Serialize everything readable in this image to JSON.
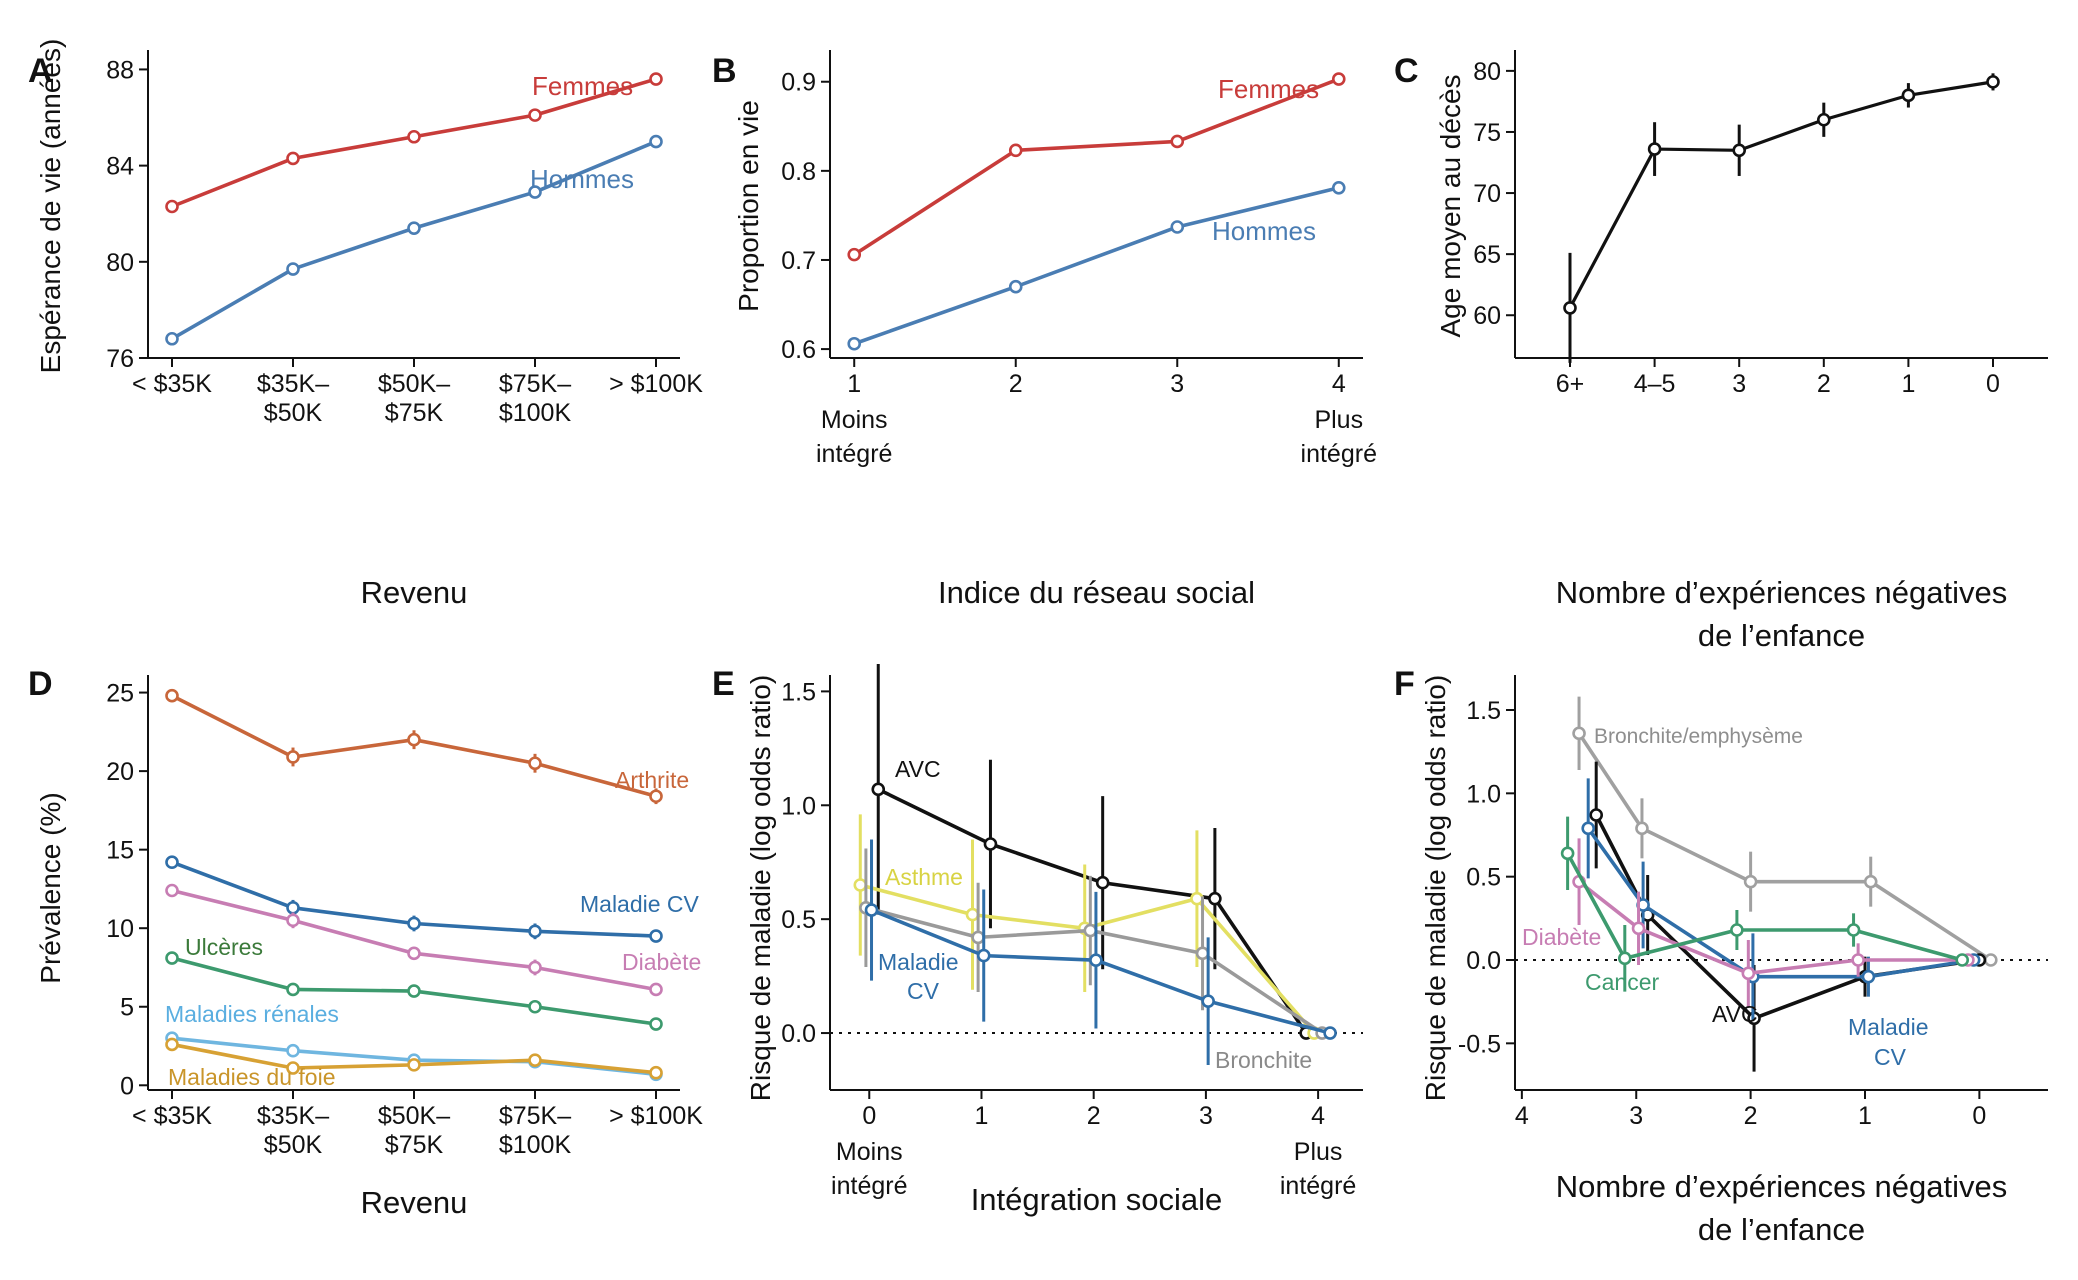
{
  "chart_data": [
    {
      "panel": "A",
      "type": "line",
      "xlabel": "Revenu",
      "ylabel": "Espérance de vie (années)",
      "categories": [
        "< $35K",
        "$35K–\n$50K",
        "$50K–\n$75K",
        "$75K–\n$100K",
        "> $100K"
      ],
      "ylim": [
        76,
        88.6
      ],
      "yticks": [
        76,
        80,
        84,
        88
      ],
      "series": [
        {
          "name": "Femmes",
          "color": "#c83c3a",
          "values": [
            82.3,
            84.3,
            85.2,
            86.1,
            87.6
          ]
        },
        {
          "name": "Hommes",
          "color": "#4a7db3",
          "values": [
            76.8,
            79.7,
            81.4,
            82.9,
            85.0
          ]
        }
      ]
    },
    {
      "panel": "B",
      "type": "line",
      "xlabel": "Indice du réseau social",
      "ylabel": "Proportion en vie",
      "x": [
        1,
        2,
        3,
        4
      ],
      "xlim": [
        0.85,
        4.15
      ],
      "ylim": [
        0.59,
        0.93
      ],
      "xticks": [
        1,
        2,
        3,
        4
      ],
      "yticks": [
        0.6,
        0.7,
        0.8,
        0.9
      ],
      "x_annotations": [
        {
          "x": 1,
          "text": "Moins\nintégré"
        },
        {
          "x": 4,
          "text": "Plus\nintégré"
        }
      ],
      "series": [
        {
          "name": "Femmes",
          "color": "#c83c3a",
          "values": [
            0.706,
            0.823,
            0.833,
            0.903
          ]
        },
        {
          "name": "Hommes",
          "color": "#4a7db3",
          "values": [
            0.606,
            0.67,
            0.737,
            0.781
          ]
        }
      ]
    },
    {
      "panel": "C",
      "type": "line",
      "xlabel": "Nombre d’expériences négatives\nde l’enfance",
      "ylabel": "Age moyen au décès",
      "categories": [
        "6+",
        "4–5",
        "3",
        "2",
        "1",
        "0"
      ],
      "ylim": [
        56.5,
        81.3
      ],
      "yticks": [
        60,
        65,
        70,
        75,
        80
      ],
      "series": [
        {
          "name": "",
          "color": "#111111",
          "values": [
            60.6,
            73.6,
            73.5,
            76.0,
            78.0,
            79.1
          ],
          "err": [
            4.5,
            2.2,
            2.1,
            1.4,
            1.0,
            0.7
          ]
        }
      ]
    },
    {
      "panel": "D",
      "type": "line",
      "xlabel": "Revenu",
      "ylabel": "Prévalence (%)",
      "categories": [
        "< $35K",
        "$35K–\n$50K",
        "$50K–\n$75K",
        "$75K–\n$100K",
        "> $100K"
      ],
      "ylim": [
        -0.3,
        25.8
      ],
      "yticks": [
        0,
        5,
        10,
        15,
        20,
        25
      ],
      "series": [
        {
          "name": "Arthrite",
          "color": "#c8663a",
          "values": [
            24.8,
            20.9,
            22.0,
            20.5,
            18.4
          ],
          "err": [
            0.4,
            0.6,
            0.6,
            0.6,
            0.5
          ]
        },
        {
          "name": "Maladie CV",
          "color": "#2f6ea8",
          "values": [
            14.2,
            11.3,
            10.3,
            9.8,
            9.5
          ],
          "err": [
            0.3,
            0.5,
            0.5,
            0.5,
            0.4
          ]
        },
        {
          "name": "Diabète",
          "color": "#c77db3",
          "values": [
            12.4,
            10.5,
            8.4,
            7.5,
            6.1
          ],
          "err": [
            0.3,
            0.5,
            0.4,
            0.5,
            0.3
          ]
        },
        {
          "name": "Ulcères",
          "color": "#3d9a6e",
          "values": [
            8.1,
            6.1,
            6.0,
            5.0,
            3.9
          ],
          "err": [
            0.3,
            0.4,
            0.4,
            0.4,
            0.3
          ]
        },
        {
          "name": "Maladies rénales",
          "color": "#6fb6e0",
          "values": [
            3.0,
            2.2,
            1.6,
            1.5,
            0.7
          ],
          "err": [
            0.2,
            0.3,
            0.3,
            0.3,
            0.2
          ]
        },
        {
          "name": "Maladies du foie",
          "color": "#d7a134",
          "values": [
            2.6,
            1.1,
            1.3,
            1.6,
            0.8
          ],
          "err": [
            0.2,
            0.3,
            0.3,
            0.3,
            0.2
          ]
        }
      ]
    },
    {
      "panel": "E",
      "type": "line",
      "xlabel": "Intégration sociale",
      "ylabel": "Risque de maladie (log odds ratio)",
      "x": [
        0,
        1,
        2,
        3,
        4
      ],
      "xlim": [
        -0.35,
        4.4
      ],
      "ylim": [
        -0.25,
        1.55
      ],
      "xticks": [
        0,
        1,
        2,
        3,
        4
      ],
      "yticks": [
        0.0,
        0.5,
        1.0,
        1.5
      ],
      "x_annotations": [
        {
          "x": 0,
          "text": "Moins\nintégré"
        },
        {
          "x": 4,
          "text": "Plus\nintégré"
        }
      ],
      "series": [
        {
          "name": "AVC",
          "color": "#111111",
          "offset": 0.08,
          "values": [
            1.07,
            0.83,
            0.66,
            0.59,
            0.0
          ],
          "err": [
            0.55,
            0.37,
            0.38,
            0.31,
            0
          ]
        },
        {
          "name": "Asthme",
          "color": "#e3df62",
          "offset": -0.08,
          "values": [
            0.65,
            0.52,
            0.46,
            0.59,
            0.0
          ],
          "err": [
            0.31,
            0.33,
            0.28,
            0.3,
            0
          ]
        },
        {
          "name": "",
          "color": "#9a9a9a",
          "offset": -0.03,
          "values": [
            0.55,
            0.42,
            0.45,
            0.35,
            0.0
          ],
          "err": [
            0.26,
            0.24,
            0.24,
            0.25,
            0
          ]
        },
        {
          "name": "Maladie CV",
          "color": "#2f6ea8",
          "offset": 0.02,
          "values": [
            0.54,
            0.34,
            0.32,
            0.14,
            0.0
          ],
          "err": [
            0.31,
            0.29,
            0.3,
            0.28,
            0
          ]
        },
        {
          "name": "Bronchite",
          "color": "#8a8a8a",
          "offset": 0.0,
          "values": [
            null,
            null,
            null,
            null,
            null
          ]
        }
      ],
      "zero_line": true
    },
    {
      "panel": "F",
      "type": "line",
      "xlabel": "Nombre d’expériences négatives\nde l’enfance",
      "ylabel": "Risque de maladie (log odds ratio)",
      "x": [
        4,
        3,
        2,
        1,
        0
      ],
      "xlim": [
        4.06,
        -0.6
      ],
      "ylim": [
        -0.78,
        1.68
      ],
      "xticks": [
        4,
        3,
        2,
        1,
        0
      ],
      "yticks": [
        -0.5,
        0.0,
        0.5,
        1.0,
        1.5
      ],
      "series": [
        {
          "name": "Bronchite/emphysème",
          "color": "#a0a0a0",
          "xs": [
            3.5,
            2.95,
            2.0,
            0.95,
            -0.1
          ],
          "values": [
            1.36,
            0.79,
            0.47,
            0.47,
            0.0
          ],
          "err": [
            0.22,
            0.18,
            0.18,
            0.15,
            0
          ]
        },
        {
          "name": "AVC",
          "color": "#111111",
          "xs": [
            3.35,
            2.9,
            1.97,
            1.0,
            0.0
          ],
          "values": [
            0.87,
            0.27,
            -0.35,
            -0.1,
            0.0
          ],
          "err": [
            0.32,
            0.24,
            0.32,
            0.12,
            0
          ]
        },
        {
          "name": "Maladie CV",
          "color": "#2f6ea8",
          "xs": [
            3.42,
            2.94,
            1.98,
            0.97,
            0.05
          ],
          "values": [
            0.79,
            0.33,
            -0.1,
            -0.1,
            0.0
          ],
          "err": [
            0.3,
            0.26,
            0.26,
            0.12,
            0
          ]
        },
        {
          "name": "Diabète",
          "color": "#c77db3",
          "xs": [
            3.5,
            2.98,
            2.02,
            1.06,
            0.1
          ],
          "values": [
            0.47,
            0.19,
            -0.08,
            0.0,
            0.0
          ],
          "err": [
            0.26,
            0.22,
            0.2,
            0.1,
            0
          ]
        },
        {
          "name": "Cancer",
          "color": "#3d9a6e",
          "xs": [
            3.6,
            3.1,
            2.12,
            1.1,
            0.15
          ],
          "values": [
            0.64,
            0.01,
            0.18,
            0.18,
            0.0
          ],
          "err": [
            0.22,
            0.2,
            0.12,
            0.1,
            0
          ]
        }
      ],
      "zero_line": true
    }
  ],
  "labels": {
    "A_femmes": "Femmes",
    "A_hommes": "Hommes",
    "B_femmes": "Femmes",
    "B_hommes": "Hommes",
    "D_arthrite": "Arthrite",
    "D_maladiecv": "Maladie CV",
    "D_diabete": "Diabète",
    "D_ulceres": "Ulcères",
    "D_renales": "Maladies rénales",
    "D_foie": "Maladies du foie",
    "E_avc": "AVC",
    "E_asthme": "Asthme",
    "E_cv1": "Maladie",
    "E_cv2": "CV",
    "E_bronchite": "Bronchite",
    "F_bronchite": "Bronchite/emphysème",
    "F_diabete": "Diabète",
    "F_cancer": "Cancer",
    "F_avc": "AVC",
    "F_cv1": "Maladie",
    "F_cv2": "CV"
  }
}
